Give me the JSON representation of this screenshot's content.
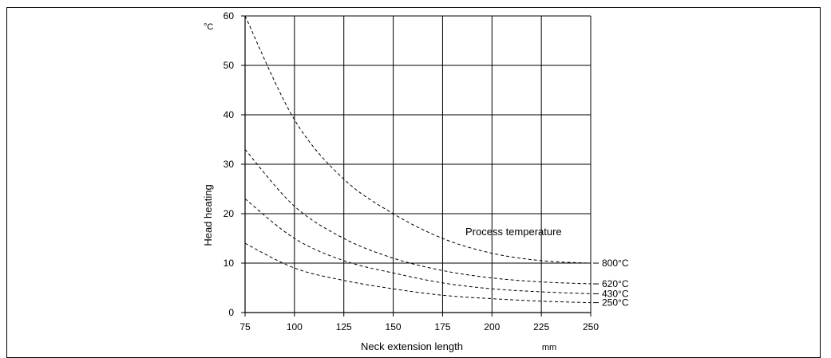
{
  "chart_data": {
    "type": "line",
    "xlabel": "Neck extension length",
    "xunit": "mm",
    "ylabel": "Head heating",
    "yunit": "°C",
    "annotation": "Process temperature",
    "xlim": [
      75,
      250
    ],
    "ylim": [
      0,
      60
    ],
    "x_ticks": [
      75,
      100,
      125,
      150,
      175,
      200,
      225,
      250
    ],
    "y_ticks": [
      0,
      10,
      20,
      30,
      40,
      50,
      60
    ],
    "grid": true,
    "line_style": "dashed",
    "x": [
      75,
      100,
      125,
      150,
      175,
      200,
      225,
      250
    ],
    "series": [
      {
        "name": "800°C",
        "values": [
          60,
          39,
          27,
          20,
          15,
          12,
          10.5,
          10
        ]
      },
      {
        "name": "620°C",
        "values": [
          33,
          21.5,
          15,
          11,
          8.5,
          7,
          6.2,
          5.8
        ]
      },
      {
        "name": "430°C",
        "values": [
          23,
          15,
          10.5,
          8,
          6,
          4.8,
          4.2,
          3.8
        ]
      },
      {
        "name": "250°C",
        "values": [
          14,
          9,
          6.5,
          4.8,
          3.5,
          2.8,
          2.3,
          2.0
        ]
      }
    ]
  }
}
